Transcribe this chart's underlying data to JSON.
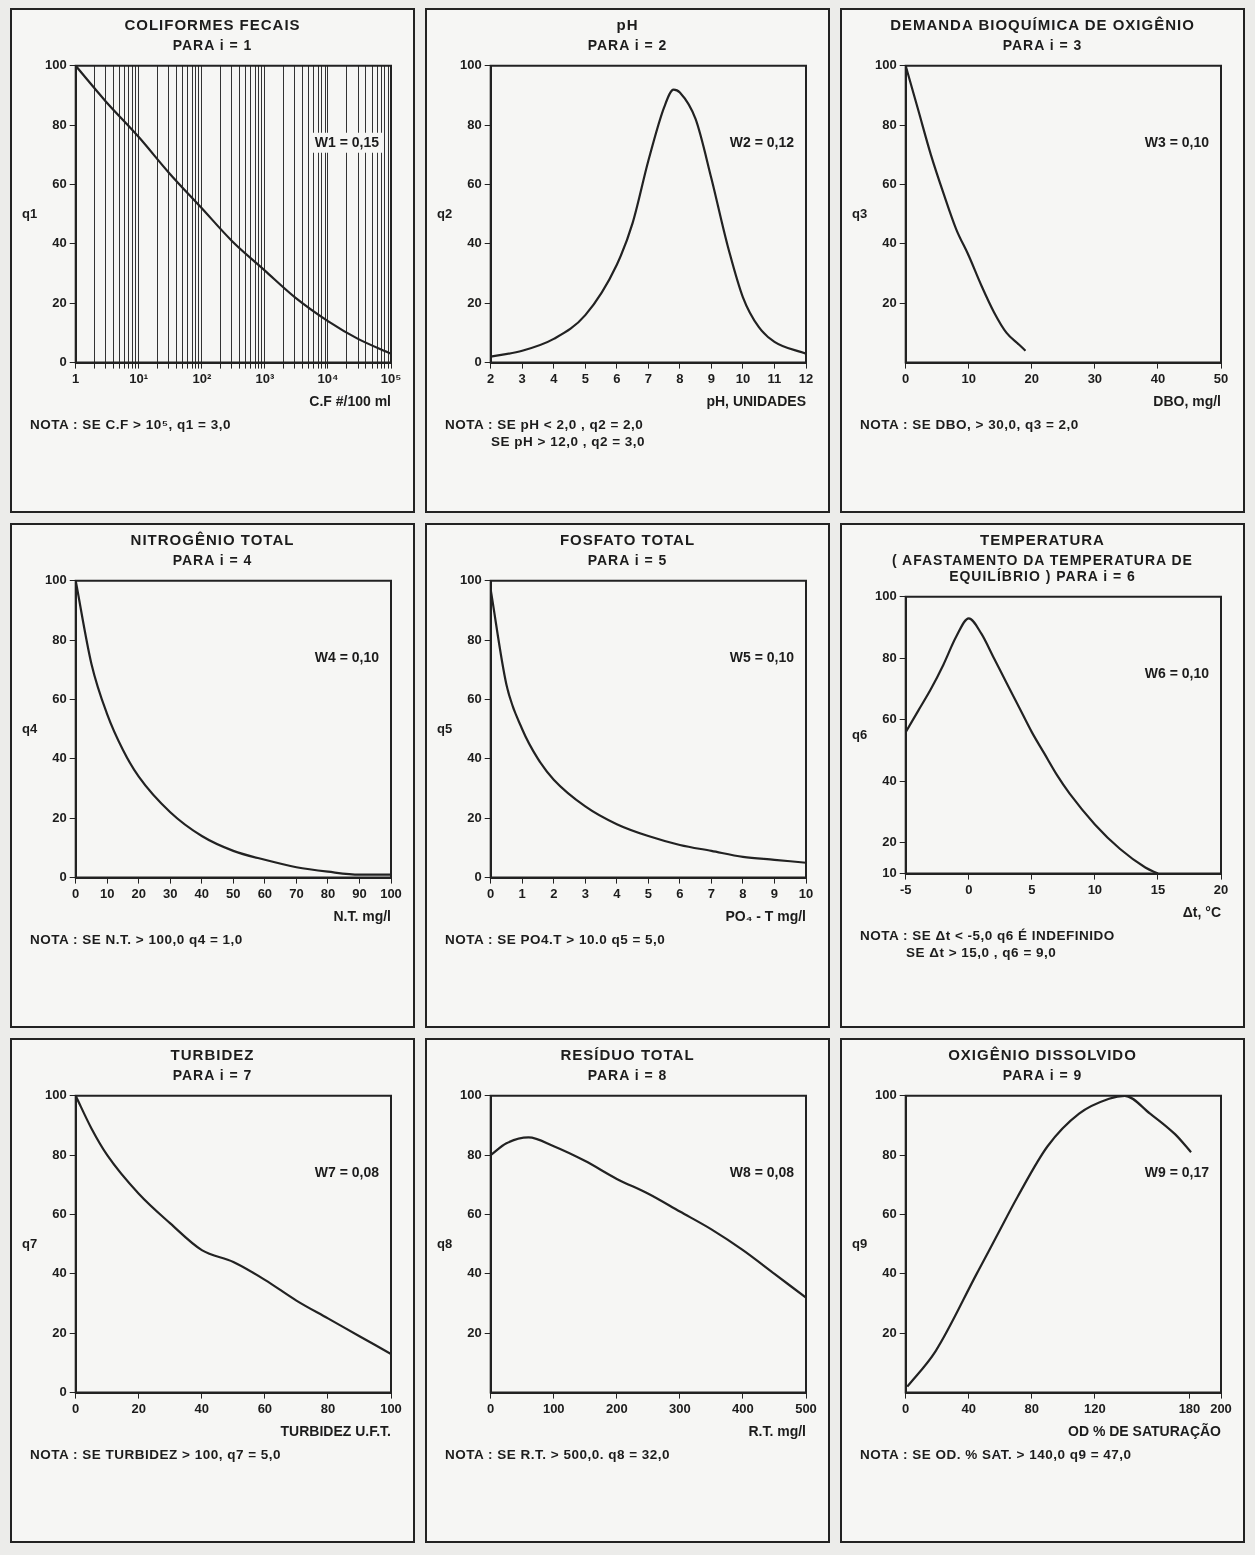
{
  "chart_data": [
    {
      "type": "line",
      "title": "COLIFORMES FECAIS",
      "subtitle": "PARA i = 1",
      "xlabel": "C.F #/100 ml",
      "ylabel": "q1",
      "annotations": [
        "W1 = 0,15",
        "NOTA : SE C.F > 10⁵, q1 = 3,0"
      ],
      "log": "x",
      "grid": "x",
      "color": "#222222",
      "x": [
        1,
        3,
        10,
        30,
        100,
        300,
        1000,
        3000,
        10000,
        30000,
        100000
      ],
      "values": [
        100,
        88,
        76,
        64,
        52,
        41,
        31,
        22,
        14,
        8,
        3
      ],
      "xlim": [
        1,
        100000
      ],
      "xticks": [
        1,
        {
          "value": 2,
          "label": null
        },
        {
          "value": 3,
          "label": null
        },
        {
          "value": 4,
          "label": null
        },
        {
          "value": 5,
          "label": null
        },
        {
          "value": 6,
          "label": null
        },
        {
          "value": 7,
          "label": null
        },
        {
          "value": 8,
          "label": null
        },
        {
          "value": 9,
          "label": null
        },
        {
          "value": 10,
          "label": "10¹"
        },
        {
          "value": 20,
          "label": null
        },
        {
          "value": 30,
          "label": null
        },
        {
          "value": 40,
          "label": null
        },
        {
          "value": 50,
          "label": null
        },
        {
          "value": 60,
          "label": null
        },
        {
          "value": 70,
          "label": null
        },
        {
          "value": 80,
          "label": null
        },
        {
          "value": 90,
          "label": null
        },
        {
          "value": 100,
          "label": "10²"
        },
        {
          "value": 200,
          "label": null
        },
        {
          "value": 300,
          "label": null
        },
        {
          "value": 400,
          "label": null
        },
        {
          "value": 500,
          "label": null
        },
        {
          "value": 600,
          "label": null
        },
        {
          "value": 700,
          "label": null
        },
        {
          "value": 800,
          "label": null
        },
        {
          "value": 900,
          "label": null
        },
        {
          "value": 1000,
          "label": "10³"
        },
        {
          "value": 2000,
          "label": null
        },
        {
          "value": 3000,
          "label": null
        },
        {
          "value": 4000,
          "label": null
        },
        {
          "value": 5000,
          "label": null
        },
        {
          "value": 6000,
          "label": null
        },
        {
          "value": 7000,
          "label": null
        },
        {
          "value": 8000,
          "label": null
        },
        {
          "value": 9000,
          "label": null
        },
        {
          "value": 10000,
          "label": "10⁴"
        },
        {
          "value": 20000,
          "label": null
        },
        {
          "value": 30000,
          "label": null
        },
        {
          "value": 40000,
          "label": null
        },
        {
          "value": 50000,
          "label": null
        },
        {
          "value": 60000,
          "label": null
        },
        {
          "value": 70000,
          "label": null
        },
        {
          "value": 80000,
          "label": null
        },
        {
          "value": 90000,
          "label": null
        },
        {
          "value": 100000,
          "label": "10⁵"
        }
      ],
      "ylim": [
        0,
        100
      ],
      "yticks": [
        0,
        20,
        40,
        60,
        80,
        100
      ]
    },
    {
      "type": "line",
      "title": "pH",
      "subtitle": "PARA i = 2",
      "xlabel": "pH, UNIDADES",
      "ylabel": "q2",
      "annotations": [
        "W2 = 0,12",
        "NOTA : SE pH < 2,0 , q2 = 2,0",
        "SE pH > 12,0 , q2 = 3,0"
      ],
      "color": "#222222",
      "x": [
        2,
        3,
        4,
        5,
        6,
        6.5,
        7,
        7.5,
        7.8,
        8,
        8.5,
        9,
        9.5,
        10,
        10.5,
        11,
        12
      ],
      "values": [
        2,
        4,
        8,
        16,
        33,
        47,
        68,
        86,
        92,
        91,
        82,
        62,
        40,
        22,
        12,
        7,
        3
      ],
      "xlim": [
        2,
        12
      ],
      "xticks": [
        2,
        3,
        4,
        5,
        6,
        7,
        8,
        9,
        10,
        11,
        12
      ],
      "ylim": [
        0,
        100
      ],
      "yticks": [
        0,
        20,
        40,
        60,
        80,
        100
      ]
    },
    {
      "type": "line",
      "title": "DEMANDA BIOQUÍMICA DE OXIGÊNIO",
      "subtitle": "PARA i = 3",
      "xlabel": "DBO, mg/l",
      "ylabel": "q3",
      "annotations": [
        "W3 = 0,10",
        "NOTA : SE DBO, > 30,0, q3 = 2,0"
      ],
      "color": "#222222",
      "x": [
        0,
        2,
        4,
        6,
        8,
        10,
        12,
        14,
        16,
        18,
        19
      ],
      "values": [
        100,
        85,
        70,
        57,
        45,
        36,
        26,
        17,
        10,
        6,
        4
      ],
      "xlim": [
        0,
        50
      ],
      "xticks": [
        0,
        10,
        20,
        30,
        40,
        50
      ],
      "ylim": [
        0,
        100
      ],
      "yticks": [
        20,
        40,
        60,
        80,
        100
      ]
    },
    {
      "type": "line",
      "title": "NITROGÊNIO TOTAL",
      "subtitle": "PARA i = 4",
      "xlabel": "N.T. mg/l",
      "ylabel": "q4",
      "annotations": [
        "W4 = 0,10",
        "NOTA : SE N.T. > 100,0 q4 = 1,0"
      ],
      "color": "#222222",
      "x": [
        0,
        5,
        10,
        15,
        20,
        30,
        40,
        50,
        60,
        70,
        80,
        90,
        100
      ],
      "values": [
        100,
        72,
        55,
        43,
        34,
        22,
        14,
        9,
        6,
        3.5,
        2,
        1,
        1
      ],
      "xlim": [
        0,
        100
      ],
      "xticks": [
        0,
        10,
        20,
        30,
        40,
        50,
        60,
        70,
        80,
        90,
        100
      ],
      "ylim": [
        0,
        100
      ],
      "yticks": [
        0,
        20,
        40,
        60,
        80,
        100
      ]
    },
    {
      "type": "line",
      "title": "FOSFATO TOTAL",
      "subtitle": "PARA i = 5",
      "xlabel": "PO₄ - T mg/l",
      "ylabel": "q5",
      "annotations": [
        "W5 = 0,10",
        "NOTA : SE PO4.T > 10.0 q5 = 5,0"
      ],
      "color": "#222222",
      "x": [
        0,
        0.5,
        1,
        1.5,
        2,
        3,
        4,
        5,
        6,
        7,
        8,
        9,
        10
      ],
      "values": [
        97,
        65,
        50,
        40,
        33,
        24,
        18,
        14,
        11,
        9,
        7,
        6,
        5
      ],
      "xlim": [
        0,
        10
      ],
      "xticks": [
        0,
        1,
        2,
        3,
        4,
        5,
        6,
        7,
        8,
        9,
        10
      ],
      "ylim": [
        0,
        100
      ],
      "yticks": [
        0,
        20,
        40,
        60,
        80,
        100
      ]
    },
    {
      "type": "line",
      "title": "TEMPERATURA",
      "subtitle": "( AFASTAMENTO DA TEMPERATURA DE EQUILÍBRIO )   PARA i = 6",
      "xlabel": "Δt, °C",
      "ylabel": "q6",
      "annotations": [
        "W6 = 0,10",
        "NOTA : SE Δt < -5,0 q6 É INDEFINIDO",
        "SE Δt > 15,0 , q6 = 9,0"
      ],
      "color": "#222222",
      "x": [
        -5,
        -4,
        -3,
        -2,
        -1,
        0,
        1,
        2,
        3,
        4,
        5,
        6,
        7,
        8,
        10,
        12,
        14,
        15
      ],
      "values": [
        56,
        63,
        70,
        78,
        87,
        93,
        88,
        80,
        72,
        64,
        56,
        49,
        42,
        36,
        26,
        18,
        12,
        10
      ],
      "xlim": [
        -5,
        20
      ],
      "xticks": [
        -5,
        0,
        5,
        10,
        15,
        20
      ],
      "ylim": [
        10,
        100
      ],
      "yticks": [
        10,
        20,
        40,
        60,
        80,
        100
      ]
    },
    {
      "type": "line",
      "title": "TURBIDEZ",
      "subtitle": "PARA i = 7",
      "xlabel": "TURBIDEZ U.F.T.",
      "ylabel": "q7",
      "annotations": [
        "W7 = 0,08",
        "NOTA : SE TURBIDEZ > 100, q7 = 5,0"
      ],
      "color": "#222222",
      "x": [
        0,
        5,
        10,
        20,
        30,
        40,
        50,
        60,
        70,
        80,
        90,
        100
      ],
      "values": [
        100,
        89,
        80,
        67,
        57,
        48,
        44,
        38,
        31,
        25,
        19,
        13
      ],
      "xlim": [
        0,
        100
      ],
      "xticks": [
        0,
        20,
        40,
        60,
        80,
        100
      ],
      "ylim": [
        0,
        100
      ],
      "yticks": [
        0,
        20,
        40,
        60,
        80,
        100
      ]
    },
    {
      "type": "line",
      "title": "RESÍDUO TOTAL",
      "subtitle": "PARA i = 8",
      "xlabel": "R.T. mg/l",
      "ylabel": "q8",
      "annotations": [
        "W8 = 0,08",
        "NOTA : SE R.T. > 500,0. q8 = 32,0"
      ],
      "color": "#222222",
      "x": [
        0,
        25,
        60,
        100,
        150,
        200,
        250,
        300,
        350,
        400,
        450,
        500
      ],
      "values": [
        80,
        84,
        86,
        83,
        78,
        72,
        67,
        61,
        55,
        48,
        40,
        32
      ],
      "xlim": [
        0,
        500
      ],
      "xticks": [
        0,
        100,
        200,
        300,
        400,
        500
      ],
      "ylim": [
        0,
        100
      ],
      "yticks": [
        20,
        40,
        60,
        80,
        100
      ]
    },
    {
      "type": "line",
      "title": "OXIGÊNIO DISSOLVIDO",
      "subtitle": "PARA i = 9",
      "xlabel": "OD % DE SATURAÇÃO",
      "ylabel": "q9",
      "annotations": [
        "W9 = 0,17",
        "NOTA : SE OD. % SAT. > 140,0 q9 = 47,0"
      ],
      "color": "#222222",
      "x": [
        1,
        19,
        45,
        58,
        71,
        90,
        110,
        129,
        139,
        155,
        171,
        181
      ],
      "values": [
        2,
        14,
        40,
        53,
        66,
        83,
        94,
        99,
        100,
        94,
        87,
        81
      ],
      "xlim": [
        0,
        200
      ],
      "xticks": [
        0,
        40,
        80,
        120,
        180,
        200
      ],
      "ylim": [
        0,
        100
      ],
      "yticks": [
        20,
        40,
        60,
        80,
        100
      ]
    }
  ]
}
